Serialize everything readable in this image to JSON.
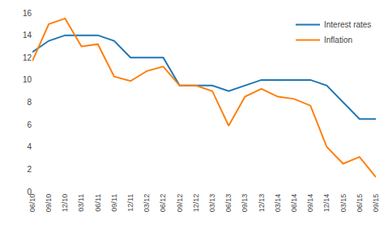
{
  "chart_data": {
    "type": "line",
    "categories": [
      "06/10",
      "09/10",
      "12/10",
      "03/11",
      "06/11",
      "09/11",
      "12/11",
      "03/12",
      "06/12",
      "09/12",
      "12/12",
      "03/13",
      "06/13",
      "09/13",
      "12/13",
      "03/14",
      "06/14",
      "09/14",
      "12/14",
      "03/15",
      "06/15",
      "09/15"
    ],
    "series": [
      {
        "name": "Interest rates",
        "values": [
          12.5,
          13.5,
          14.0,
          14.0,
          14.0,
          13.5,
          12.0,
          12.0,
          12.0,
          9.5,
          9.5,
          9.5,
          9.0,
          9.5,
          10.0,
          10.0,
          10.0,
          10.0,
          9.5,
          8.0,
          6.5,
          6.5
        ]
      },
      {
        "name": "Inflation",
        "values": [
          11.7,
          15.0,
          15.5,
          13.0,
          13.2,
          10.3,
          9.9,
          10.8,
          11.2,
          9.5,
          9.5,
          9.0,
          5.9,
          8.5,
          9.2,
          8.5,
          8.3,
          7.7,
          4.0,
          2.5,
          3.1,
          1.3
        ]
      }
    ],
    "ylim": [
      0,
      16
    ],
    "yticks": [
      0,
      2,
      4,
      6,
      8,
      10,
      12,
      14,
      16
    ],
    "grid": false,
    "legend": "upper right"
  }
}
